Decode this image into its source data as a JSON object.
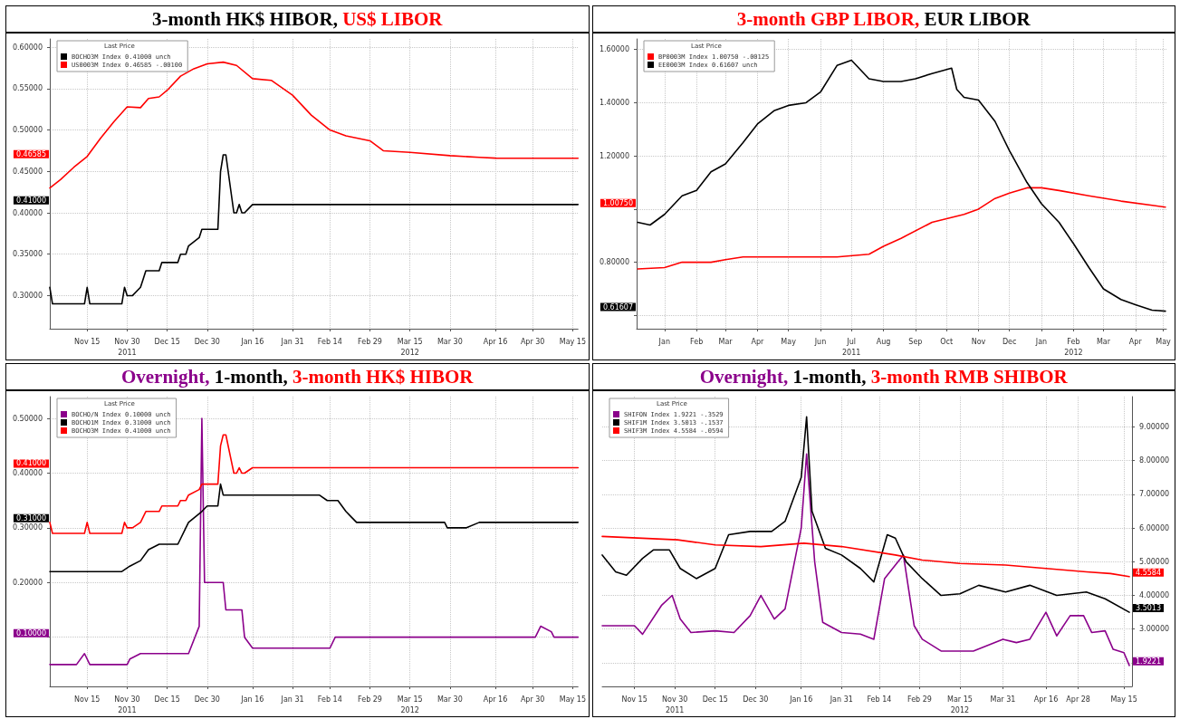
{
  "chart_data": [
    {
      "type": "line",
      "title": "3-month HK$ HIBOR, US$ LIBOR",
      "legend_title": "Last Price",
      "legend": "top left",
      "grid": true,
      "marker": "none",
      "line_style": "solid",
      "xlim": [
        "2011-11-01",
        "2012-05-17"
      ],
      "xticks": [
        {
          "value": "2011-11-15",
          "label": "Nov 15"
        },
        {
          "value": "2011-11-30",
          "label": "Nov 30\n2011"
        },
        {
          "value": "2011-12-15",
          "label": "Dec 15"
        },
        {
          "value": "2011-12-30",
          "label": "Dec 30"
        },
        {
          "value": "2012-01-16",
          "label": "Jan 16"
        },
        {
          "value": "2012-01-31",
          "label": "Jan 31"
        },
        {
          "value": "2012-02-14",
          "label": "Feb 14"
        },
        {
          "value": "2012-02-29",
          "label": "Feb 29"
        },
        {
          "value": "2012-03-15",
          "label": "Mar 15\n2012"
        },
        {
          "value": "2012-03-30",
          "label": "Mar 30"
        },
        {
          "value": "2012-04-16",
          "label": "Apr 16"
        },
        {
          "value": "2012-04-30",
          "label": "Apr 30"
        },
        {
          "value": "2012-05-15",
          "label": "May 15"
        }
      ],
      "ylim": [
        0.26,
        0.61
      ],
      "yticks": [
        {
          "value": 0.3,
          "label": "0.30000"
        },
        {
          "value": 0.35,
          "label": "0.35000"
        },
        {
          "value": 0.4,
          "label": "0.40000"
        },
        {
          "value": 0.45,
          "label": "0.45000"
        },
        {
          "value": 0.5,
          "label": "0.50000"
        },
        {
          "value": 0.55,
          "label": "0.55000"
        },
        {
          "value": 0.6,
          "label": "0.60000"
        }
      ],
      "annotations": [
        "0.41000",
        "0.46585"
      ],
      "series": [
        {
          "name": "BOCHO3M Index 0.41000 unch",
          "color": "#000000",
          "x": [
            "2011-11-01",
            "2011-11-02",
            "2011-11-14",
            "2011-11-15",
            "2011-11-16",
            "2011-11-28",
            "2011-11-29",
            "2011-11-30",
            "2011-12-02",
            "2011-12-05",
            "2011-12-06",
            "2011-12-07",
            "2011-12-12",
            "2011-12-13",
            "2011-12-19",
            "2011-12-20",
            "2011-12-22",
            "2011-12-23",
            "2011-12-27",
            "2011-12-28",
            "2012-01-03",
            "2012-01-04",
            "2012-01-05",
            "2012-01-06",
            "2012-01-09",
            "2012-01-10",
            "2012-01-11",
            "2012-01-12",
            "2012-01-13",
            "2012-01-16",
            "2012-05-17"
          ],
          "values": [
            0.31,
            0.29,
            0.29,
            0.31,
            0.29,
            0.29,
            0.31,
            0.3,
            0.3,
            0.31,
            0.32,
            0.33,
            0.33,
            0.34,
            0.34,
            0.35,
            0.35,
            0.36,
            0.37,
            0.38,
            0.38,
            0.45,
            0.47,
            0.47,
            0.4,
            0.4,
            0.41,
            0.4,
            0.4,
            0.41,
            0.41
          ]
        },
        {
          "name": "US0003M Index 0.46585 -.00100",
          "color": "#ff0000",
          "x": [
            "2011-11-01",
            "2011-11-05",
            "2011-11-10",
            "2011-11-15",
            "2011-11-20",
            "2011-11-25",
            "2011-11-30",
            "2011-12-05",
            "2011-12-08",
            "2011-12-12",
            "2011-12-15",
            "2011-12-20",
            "2011-12-25",
            "2011-12-30",
            "2012-01-05",
            "2012-01-10",
            "2012-01-16",
            "2012-01-23",
            "2012-01-31",
            "2012-02-07",
            "2012-02-14",
            "2012-02-20",
            "2012-02-29",
            "2012-03-05",
            "2012-03-15",
            "2012-03-30",
            "2012-04-10",
            "2012-04-16",
            "2012-05-17"
          ],
          "values": [
            0.43,
            0.44,
            0.455,
            0.468,
            0.49,
            0.51,
            0.528,
            0.527,
            0.538,
            0.54,
            0.548,
            0.565,
            0.574,
            0.58,
            0.582,
            0.578,
            0.562,
            0.56,
            0.542,
            0.518,
            0.5,
            0.493,
            0.487,
            0.475,
            0.473,
            0.469,
            0.467,
            0.466,
            0.46585
          ]
        }
      ]
    },
    {
      "type": "line",
      "title": "3-month GBP LIBOR, EUR LIBOR",
      "legend_title": "Last Price",
      "legend": "top left",
      "grid": true,
      "marker": "none",
      "line_style": "solid",
      "xlim": [
        "2010-12-19",
        "2012-05-15"
      ],
      "xticks": [
        {
          "value": "2011-01-15",
          "label": "Jan"
        },
        {
          "value": "2011-02-15",
          "label": "Feb"
        },
        {
          "value": "2011-03-15",
          "label": "Mar"
        },
        {
          "value": "2011-04-15",
          "label": "Apr"
        },
        {
          "value": "2011-05-15",
          "label": "May"
        },
        {
          "value": "2011-06-15",
          "label": "Jun"
        },
        {
          "value": "2011-07-15",
          "label": "Jul\n2011"
        },
        {
          "value": "2011-08-15",
          "label": "Aug"
        },
        {
          "value": "2011-09-15",
          "label": "Sep"
        },
        {
          "value": "2011-10-15",
          "label": "Oct"
        },
        {
          "value": "2011-11-15",
          "label": "Nov"
        },
        {
          "value": "2011-12-15",
          "label": "Dec"
        },
        {
          "value": "2012-01-15",
          "label": "Jan"
        },
        {
          "value": "2012-02-15",
          "label": "Feb\n2012"
        },
        {
          "value": "2012-03-15",
          "label": "Mar"
        },
        {
          "value": "2012-04-15",
          "label": "Apr"
        },
        {
          "value": "2012-05-12",
          "label": "May"
        }
      ],
      "ylim": [
        0.55,
        1.64
      ],
      "yticks": [
        {
          "value": 0.6,
          "label": null
        },
        {
          "value": 0.8,
          "label": "0.80000"
        },
        {
          "value": 1.0,
          "label": null
        },
        {
          "value": 1.2,
          "label": "1.20000"
        },
        {
          "value": 1.4,
          "label": "1.40000"
        },
        {
          "value": 1.6,
          "label": "1.60000"
        }
      ],
      "annotations": [
        "1.00750",
        "0.61607"
      ],
      "series": [
        {
          "name": "BP0003M Index 1.00750 -.00125",
          "color": "#ff0000",
          "x": [
            "2010-12-20",
            "2011-01-15",
            "2011-02-01",
            "2011-03-01",
            "2011-03-15",
            "2011-04-01",
            "2011-07-01",
            "2011-08-01",
            "2011-08-15",
            "2011-09-01",
            "2011-10-01",
            "2011-11-01",
            "2011-11-15",
            "2011-12-01",
            "2011-12-15",
            "2012-01-01",
            "2012-01-15",
            "2012-02-01",
            "2012-03-01",
            "2012-04-01",
            "2012-05-14"
          ],
          "values": [
            0.775,
            0.78,
            0.8,
            0.8,
            0.81,
            0.82,
            0.82,
            0.83,
            0.86,
            0.89,
            0.95,
            0.98,
            1.0,
            1.04,
            1.06,
            1.08,
            1.08,
            1.07,
            1.05,
            1.03,
            1.0075
          ]
        },
        {
          "name": "EE0003M Index 0.61607 unch",
          "color": "#000000",
          "x": [
            "2010-12-20",
            "2011-01-01",
            "2011-01-15",
            "2011-02-01",
            "2011-02-15",
            "2011-03-01",
            "2011-03-15",
            "2011-04-01",
            "2011-04-15",
            "2011-05-01",
            "2011-05-15",
            "2011-06-01",
            "2011-06-15",
            "2011-07-01",
            "2011-07-15",
            "2011-08-01",
            "2011-08-15",
            "2011-09-01",
            "2011-09-15",
            "2011-10-01",
            "2011-10-20",
            "2011-10-25",
            "2011-11-01",
            "2011-11-15",
            "2011-12-01",
            "2011-12-15",
            "2012-01-01",
            "2012-01-15",
            "2012-02-01",
            "2012-02-15",
            "2012-03-01",
            "2012-03-15",
            "2012-04-01",
            "2012-04-15",
            "2012-05-01",
            "2012-05-14"
          ],
          "values": [
            0.95,
            0.94,
            0.98,
            1.05,
            1.07,
            1.14,
            1.17,
            1.25,
            1.32,
            1.37,
            1.39,
            1.4,
            1.44,
            1.54,
            1.56,
            1.49,
            1.48,
            1.48,
            1.49,
            1.51,
            1.53,
            1.45,
            1.42,
            1.41,
            1.33,
            1.22,
            1.1,
            1.02,
            0.95,
            0.87,
            0.78,
            0.7,
            0.66,
            0.64,
            0.62,
            0.61607
          ]
        }
      ]
    },
    {
      "type": "line",
      "title": "Overnight, 1-month, 3-month HK$ HIBOR",
      "legend_title": "Last Price",
      "legend": "top left",
      "grid": true,
      "marker": "none",
      "line_style": "solid",
      "xlim": [
        "2011-11-01",
        "2012-05-17"
      ],
      "xticks": [
        {
          "value": "2011-11-15",
          "label": "Nov 15"
        },
        {
          "value": "2011-11-30",
          "label": "Nov 30\n2011"
        },
        {
          "value": "2011-12-15",
          "label": "Dec 15"
        },
        {
          "value": "2011-12-30",
          "label": "Dec 30"
        },
        {
          "value": "2012-01-16",
          "label": "Jan 16"
        },
        {
          "value": "2012-01-31",
          "label": "Jan 31"
        },
        {
          "value": "2012-02-14",
          "label": "Feb 14"
        },
        {
          "value": "2012-02-29",
          "label": "Feb 29"
        },
        {
          "value": "2012-03-15",
          "label": "Mar 15\n2012"
        },
        {
          "value": "2012-03-30",
          "label": "Mar 30"
        },
        {
          "value": "2012-04-16",
          "label": "Apr 16"
        },
        {
          "value": "2012-04-30",
          "label": "Apr 30"
        },
        {
          "value": "2012-05-15",
          "label": "May 15"
        }
      ],
      "ylim": [
        0.01,
        0.54
      ],
      "yticks": [
        {
          "value": 0.1,
          "label": null
        },
        {
          "value": 0.2,
          "label": "0.20000"
        },
        {
          "value": 0.3,
          "label": "0.30000"
        },
        {
          "value": 0.4,
          "label": "0.40000"
        },
        {
          "value": 0.5,
          "label": "0.50000"
        }
      ],
      "annotations": [
        "0.10000",
        "0.31000",
        "0.41000"
      ],
      "series": [
        {
          "name": "BOCHO/N Index 0.10000 unch",
          "color": "#8b008b",
          "x": [
            "2011-11-01",
            "2011-11-11",
            "2011-11-14",
            "2011-11-16",
            "2011-11-30",
            "2011-12-01",
            "2011-12-05",
            "2011-12-23",
            "2011-12-27",
            "2011-12-28",
            "2011-12-29",
            "2012-01-05",
            "2012-01-06",
            "2012-01-12",
            "2012-01-13",
            "2012-01-16",
            "2012-02-14",
            "2012-02-16",
            "2012-05-01",
            "2012-05-03",
            "2012-05-07",
            "2012-05-08",
            "2012-05-17"
          ],
          "values": [
            0.05,
            0.05,
            0.07,
            0.05,
            0.05,
            0.06,
            0.07,
            0.07,
            0.12,
            0.5,
            0.2,
            0.2,
            0.15,
            0.15,
            0.1,
            0.08,
            0.08,
            0.1,
            0.1,
            0.12,
            0.11,
            0.1,
            0.1
          ]
        },
        {
          "name": "BOCHO1M Index 0.31000 unch",
          "color": "#000000",
          "x": [
            "2011-11-01",
            "2011-11-28",
            "2011-12-01",
            "2011-12-05",
            "2011-12-08",
            "2011-12-12",
            "2011-12-19",
            "2011-12-20",
            "2011-12-22",
            "2011-12-23",
            "2011-12-28",
            "2011-12-30",
            "2012-01-03",
            "2012-01-04",
            "2012-01-05",
            "2012-02-10",
            "2012-02-13",
            "2012-02-17",
            "2012-02-20",
            "2012-02-22",
            "2012-02-24",
            "2012-03-28",
            "2012-03-29",
            "2012-04-05",
            "2012-04-10",
            "2012-05-17"
          ],
          "values": [
            0.22,
            0.22,
            0.23,
            0.24,
            0.26,
            0.27,
            0.27,
            0.28,
            0.3,
            0.31,
            0.33,
            0.34,
            0.34,
            0.38,
            0.36,
            0.36,
            0.35,
            0.35,
            0.33,
            0.32,
            0.31,
            0.31,
            0.3,
            0.3,
            0.31,
            0.31
          ]
        },
        {
          "name": "BOCHO3M Index 0.41000 unch",
          "color": "#ff0000",
          "x": [
            "2011-11-01",
            "2011-11-02",
            "2011-11-14",
            "2011-11-15",
            "2011-11-16",
            "2011-11-28",
            "2011-11-29",
            "2011-11-30",
            "2011-12-02",
            "2011-12-05",
            "2011-12-06",
            "2011-12-07",
            "2011-12-12",
            "2011-12-13",
            "2011-12-19",
            "2011-12-20",
            "2011-12-22",
            "2011-12-23",
            "2011-12-27",
            "2011-12-28",
            "2012-01-03",
            "2012-01-04",
            "2012-01-05",
            "2012-01-06",
            "2012-01-09",
            "2012-01-10",
            "2012-01-11",
            "2012-01-12",
            "2012-01-13",
            "2012-01-16",
            "2012-05-17"
          ],
          "values": [
            0.31,
            0.29,
            0.29,
            0.31,
            0.29,
            0.29,
            0.31,
            0.3,
            0.3,
            0.31,
            0.32,
            0.33,
            0.33,
            0.34,
            0.34,
            0.35,
            0.35,
            0.36,
            0.37,
            0.38,
            0.38,
            0.45,
            0.47,
            0.47,
            0.4,
            0.4,
            0.41,
            0.4,
            0.4,
            0.41,
            0.41
          ]
        }
      ]
    },
    {
      "type": "line",
      "title": "Overnight, 1-month, 3-month RMB SHIBOR",
      "legend_title": "Last Price",
      "legend": "top left",
      "grid": true,
      "marker": "none",
      "line_style": "solid",
      "xlim": [
        "2011-11-03",
        "2012-05-18"
      ],
      "xticks": [
        {
          "value": "2011-11-15",
          "label": "Nov 15"
        },
        {
          "value": "2011-11-30",
          "label": "Nov 30\n2011"
        },
        {
          "value": "2011-12-15",
          "label": "Dec 15"
        },
        {
          "value": "2011-12-30",
          "label": "Dec 30"
        },
        {
          "value": "2012-01-16",
          "label": "Jan 16"
        },
        {
          "value": "2012-01-31",
          "label": "Jan 31"
        },
        {
          "value": "2012-02-14",
          "label": "Feb 14"
        },
        {
          "value": "2012-02-29",
          "label": "Feb 29"
        },
        {
          "value": "2012-03-15",
          "label": "Mar 15\n2012"
        },
        {
          "value": "2012-03-31",
          "label": "Mar 31"
        },
        {
          "value": "2012-04-16",
          "label": "Apr 16"
        },
        {
          "value": "2012-04-28",
          "label": "Apr 28"
        },
        {
          "value": "2012-05-15",
          "label": "May 15"
        }
      ],
      "y2lim": [
        1.3,
        9.9
      ],
      "y2ticks": [
        {
          "value": 2,
          "label": null
        },
        {
          "value": 3,
          "label": "3.00000"
        },
        {
          "value": 4,
          "label": "4.00000"
        },
        {
          "value": 5,
          "label": "5.00000"
        },
        {
          "value": 6,
          "label": "6.00000"
        },
        {
          "value": 7,
          "label": "7.00000"
        },
        {
          "value": 8,
          "label": "8.00000"
        },
        {
          "value": 9,
          "label": "9.00000"
        }
      ],
      "annotations": [
        "1.9221",
        "3.5013",
        "4.5584"
      ],
      "series": [
        {
          "name": "SHIFON Index 1.9221 -.3529",
          "color": "#8b008b",
          "axis": "y2",
          "x": [
            "2011-11-03",
            "2011-11-15",
            "2011-11-18",
            "2011-11-25",
            "2011-11-29",
            "2011-12-02",
            "2011-12-06",
            "2011-12-15",
            "2011-12-22",
            "2011-12-28",
            "2012-01-01",
            "2012-01-06",
            "2012-01-10",
            "2012-01-16",
            "2012-01-18",
            "2012-01-21",
            "2012-01-24",
            "2012-01-31",
            "2012-02-07",
            "2012-02-12",
            "2012-02-16",
            "2012-02-20",
            "2012-02-23",
            "2012-02-27",
            "2012-03-01",
            "2012-03-08",
            "2012-03-20",
            "2012-03-31",
            "2012-04-05",
            "2012-04-10",
            "2012-04-16",
            "2012-04-20",
            "2012-04-25",
            "2012-04-30",
            "2012-05-03",
            "2012-05-08",
            "2012-05-11",
            "2012-05-15",
            "2012-05-17"
          ],
          "values": [
            3.1,
            3.1,
            2.85,
            3.7,
            4.0,
            3.3,
            2.9,
            2.95,
            2.9,
            3.4,
            4.0,
            3.3,
            3.6,
            6.0,
            8.2,
            5.0,
            3.2,
            2.9,
            2.85,
            2.7,
            4.5,
            4.9,
            5.2,
            3.1,
            2.7,
            2.35,
            2.35,
            2.7,
            2.6,
            2.7,
            3.5,
            2.8,
            3.4,
            3.4,
            2.9,
            2.95,
            2.4,
            2.3,
            1.9221
          ]
        },
        {
          "name": "SHIF1M Index 3.5013 -.1537",
          "color": "#000000",
          "axis": "y2",
          "x": [
            "2011-11-03",
            "2011-11-08",
            "2011-11-12",
            "2011-11-18",
            "2011-11-22",
            "2011-11-28",
            "2011-12-02",
            "2011-12-08",
            "2011-12-15",
            "2011-12-20",
            "2011-12-28",
            "2012-01-05",
            "2012-01-10",
            "2012-01-16",
            "2012-01-18",
            "2012-01-20",
            "2012-01-25",
            "2012-01-31",
            "2012-02-07",
            "2012-02-12",
            "2012-02-17",
            "2012-02-20",
            "2012-02-24",
            "2012-03-01",
            "2012-03-08",
            "2012-03-15",
            "2012-03-22",
            "2012-04-01",
            "2012-04-10",
            "2012-04-20",
            "2012-05-01",
            "2012-05-08",
            "2012-05-17"
          ],
          "values": [
            5.2,
            4.7,
            4.6,
            5.1,
            5.35,
            5.35,
            4.8,
            4.5,
            4.8,
            5.8,
            5.9,
            5.9,
            6.2,
            7.5,
            9.3,
            6.5,
            5.4,
            5.2,
            4.8,
            4.4,
            5.8,
            5.7,
            5.0,
            4.5,
            4.0,
            4.05,
            4.3,
            4.1,
            4.3,
            4.0,
            4.1,
            3.9,
            3.5013
          ]
        },
        {
          "name": "SHIF3M Index 4.5584 -.0594",
          "color": "#ff0000",
          "axis": "y2",
          "x": [
            "2011-11-03",
            "2011-12-01",
            "2011-12-15",
            "2012-01-01",
            "2012-01-17",
            "2012-01-31",
            "2012-02-20",
            "2012-03-01",
            "2012-03-15",
            "2012-04-01",
            "2012-04-16",
            "2012-05-01",
            "2012-05-10",
            "2012-05-17"
          ],
          "values": [
            5.75,
            5.65,
            5.5,
            5.45,
            5.55,
            5.45,
            5.2,
            5.05,
            4.95,
            4.9,
            4.8,
            4.7,
            4.65,
            4.5584
          ]
        }
      ]
    }
  ]
}
